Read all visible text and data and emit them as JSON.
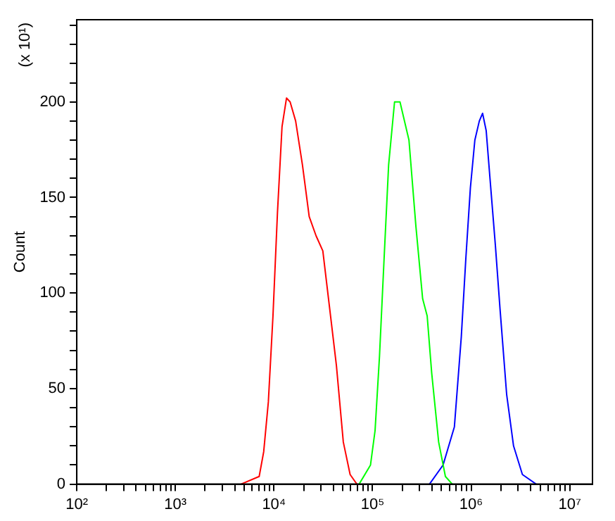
{
  "chart_data": {
    "type": "line",
    "ylabel": "Count",
    "annotations": [
      "(x 10¹)"
    ],
    "log": "x",
    "grid": false,
    "legend": false,
    "marker": "none",
    "line_style": "solid",
    "xlim": [
      100,
      17000000
    ],
    "ylim": [
      0,
      243
    ],
    "xticks": [
      {
        "value": 100,
        "label": "10²"
      },
      {
        "value": 200,
        "label": null
      },
      {
        "value": 300,
        "label": null
      },
      {
        "value": 400,
        "label": null
      },
      {
        "value": 500,
        "label": null
      },
      {
        "value": 600,
        "label": null
      },
      {
        "value": 700,
        "label": null
      },
      {
        "value": 800,
        "label": null
      },
      {
        "value": 900,
        "label": null
      },
      {
        "value": 1000,
        "label": "10³"
      },
      {
        "value": 2000,
        "label": null
      },
      {
        "value": 3000,
        "label": null
      },
      {
        "value": 4000,
        "label": null
      },
      {
        "value": 5000,
        "label": null
      },
      {
        "value": 6000,
        "label": null
      },
      {
        "value": 7000,
        "label": null
      },
      {
        "value": 8000,
        "label": null
      },
      {
        "value": 9000,
        "label": null
      },
      {
        "value": 10000,
        "label": "10⁴"
      },
      {
        "value": 20000,
        "label": null
      },
      {
        "value": 30000,
        "label": null
      },
      {
        "value": 40000,
        "label": null
      },
      {
        "value": 50000,
        "label": null
      },
      {
        "value": 60000,
        "label": null
      },
      {
        "value": 70000,
        "label": null
      },
      {
        "value": 80000,
        "label": null
      },
      {
        "value": 90000,
        "label": null
      },
      {
        "value": 100000,
        "label": "10⁵"
      },
      {
        "value": 200000,
        "label": null
      },
      {
        "value": 300000,
        "label": null
      },
      {
        "value": 400000,
        "label": null
      },
      {
        "value": 500000,
        "label": null
      },
      {
        "value": 600000,
        "label": null
      },
      {
        "value": 700000,
        "label": null
      },
      {
        "value": 800000,
        "label": null
      },
      {
        "value": 900000,
        "label": null
      },
      {
        "value": 1000000,
        "label": "10⁶"
      },
      {
        "value": 2000000,
        "label": null
      },
      {
        "value": 3000000,
        "label": null
      },
      {
        "value": 4000000,
        "label": null
      },
      {
        "value": 5000000,
        "label": null
      },
      {
        "value": 6000000,
        "label": null
      },
      {
        "value": 7000000,
        "label": null
      },
      {
        "value": 8000000,
        "label": null
      },
      {
        "value": 9000000,
        "label": null
      },
      {
        "value": 10000000,
        "label": "10⁷"
      }
    ],
    "yticks": [
      0,
      {
        "value": 10,
        "label": null
      },
      {
        "value": 20,
        "label": null
      },
      {
        "value": 30,
        "label": null
      },
      {
        "value": 40,
        "label": null
      },
      50,
      {
        "value": 60,
        "label": null
      },
      {
        "value": 70,
        "label": null
      },
      {
        "value": 80,
        "label": null
      },
      {
        "value": 90,
        "label": null
      },
      100,
      {
        "value": 110,
        "label": null
      },
      {
        "value": 120,
        "label": null
      },
      {
        "value": 130,
        "label": null
      },
      {
        "value": 140,
        "label": null
      },
      150,
      {
        "value": 160,
        "label": null
      },
      {
        "value": 170,
        "label": null
      },
      {
        "value": 180,
        "label": null
      },
      {
        "value": 190,
        "label": null
      },
      200,
      {
        "value": 210,
        "label": null
      },
      {
        "value": 220,
        "label": null
      },
      {
        "value": 230,
        "label": null
      },
      {
        "value": 240,
        "label": null
      }
    ],
    "series": [
      {
        "color": "#ff0000",
        "x": [
          4640,
          7080,
          7870,
          8770,
          9770,
          10850,
          12070,
          13400,
          14580,
          16590,
          19450,
          22770,
          26700,
          31300,
          36700,
          43000,
          50500,
          59200,
          69300
        ],
        "values": [
          0,
          4,
          17,
          43,
          88,
          142,
          187,
          202,
          200,
          190,
          167,
          140,
          130,
          122,
          92,
          62,
          22,
          5,
          0
        ]
      },
      {
        "color": "#00ff00",
        "x": [
          73100,
          95300,
          106000,
          117600,
          130900,
          145500,
          167100,
          189700,
          234000,
          275000,
          322000,
          358000,
          398000,
          468000,
          548000,
          643000
        ],
        "values": [
          0,
          10,
          28,
          67,
          118,
          167,
          200,
          200,
          180,
          135,
          97,
          88,
          58,
          22,
          4,
          0
        ]
      },
      {
        "color": "#0000ff",
        "x": [
          378000,
          519000,
          676000,
          794000,
          883000,
          982000,
          1090000,
          1210000,
          1306000,
          1420000,
          1580000,
          1760000,
          1960000,
          2290000,
          2690000,
          3310000,
          4560000
        ],
        "values": [
          0,
          10,
          30,
          77,
          118,
          155,
          180,
          190,
          194,
          185,
          155,
          125,
          92,
          47,
          20,
          5,
          0
        ]
      }
    ]
  }
}
